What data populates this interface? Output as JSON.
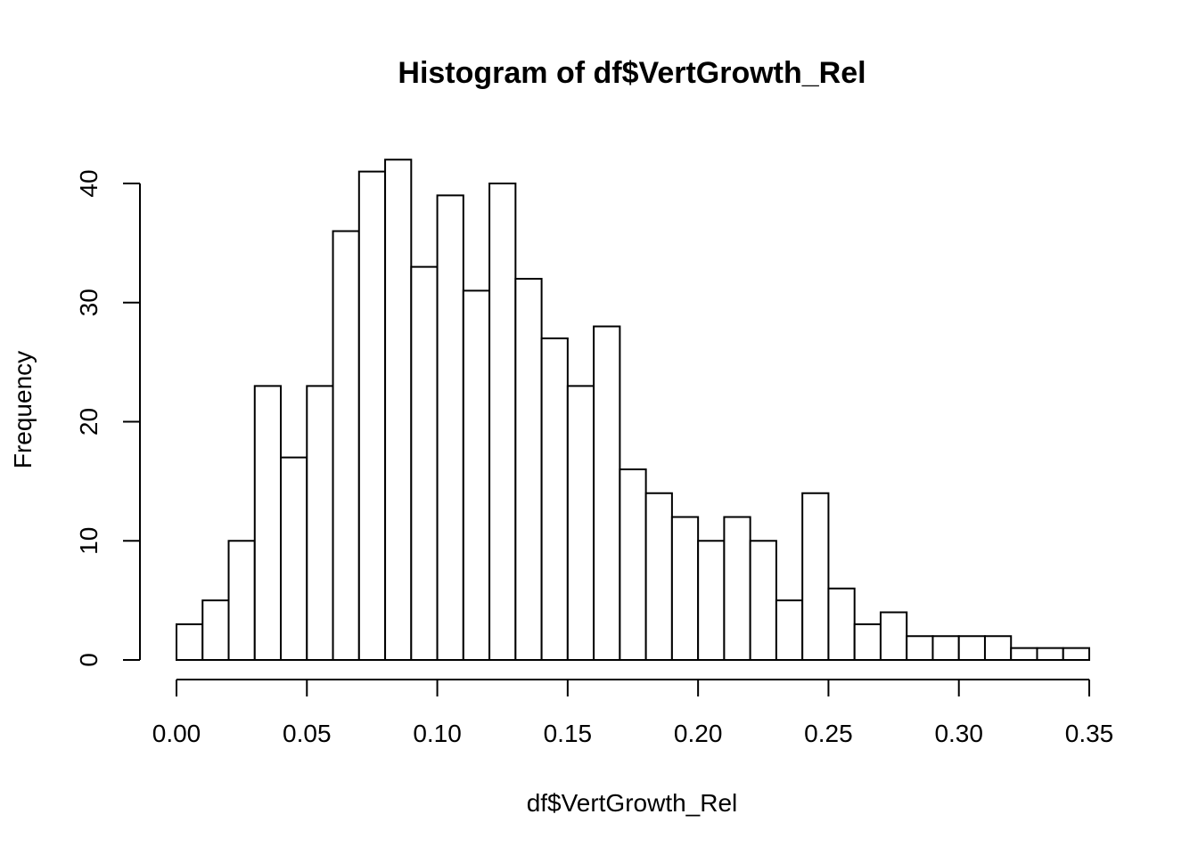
{
  "chart_data": {
    "type": "bar",
    "title": "Histogram of df$VertGrowth_Rel",
    "xlabel": "df$VertGrowth_Rel",
    "ylabel": "Frequency",
    "bin_width": 0.01,
    "bins_start": [
      0.0,
      0.01,
      0.02,
      0.03,
      0.04,
      0.05,
      0.06,
      0.07,
      0.08,
      0.09,
      0.1,
      0.11,
      0.12,
      0.13,
      0.14,
      0.15,
      0.16,
      0.17,
      0.18,
      0.19,
      0.2,
      0.21,
      0.22,
      0.23,
      0.24,
      0.25,
      0.26,
      0.27,
      0.28,
      0.29,
      0.3,
      0.31,
      0.32,
      0.33,
      0.34
    ],
    "values": [
      3,
      5,
      10,
      23,
      17,
      23,
      36,
      41,
      42,
      33,
      39,
      31,
      40,
      32,
      27,
      23,
      28,
      16,
      14,
      12,
      10,
      12,
      10,
      5,
      14,
      6,
      3,
      4,
      2,
      2,
      2,
      2,
      1,
      1,
      1
    ],
    "xlim": [
      0,
      0.35
    ],
    "ylim": [
      0,
      40
    ],
    "x_ticks": [
      "0.00",
      "0.05",
      "0.10",
      "0.15",
      "0.20",
      "0.25",
      "0.30",
      "0.35"
    ],
    "y_ticks": [
      "0",
      "10",
      "20",
      "30",
      "40"
    ],
    "grid": false,
    "legend": "none"
  }
}
